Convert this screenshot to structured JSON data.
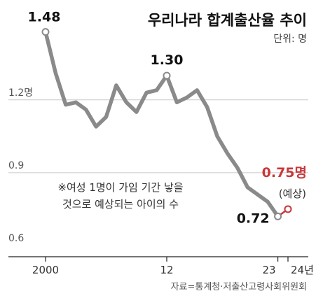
{
  "title": "우리나라 합계출산율 추이",
  "unit": "단위: 명",
  "source": "자료=통계청·저출산고령사회위원회",
  "note_lines": [
    "※여성 1명이 가임 기간 낳을",
    "것으로 예상되는 아이의 수"
  ],
  "colors": {
    "line": "#8a8a8a",
    "projection": "#c8383a",
    "text": "#111111"
  },
  "chart_data": {
    "type": "line",
    "title": "우리나라 합계출산율 추이",
    "ylabel": "",
    "ylim": [
      0.6,
      1.6
    ],
    "y_ticks": [
      {
        "value": 0.6,
        "label": "0.6"
      },
      {
        "value": 0.9,
        "label": "0.9"
      },
      {
        "value": 1.2,
        "label": "1.2명"
      }
    ],
    "x_ticks": [
      {
        "value": 2000,
        "label": "2000"
      },
      {
        "value": 2012,
        "label": "12"
      },
      {
        "value": 2023,
        "label": "23"
      },
      {
        "value": 2024,
        "label": "24년"
      }
    ],
    "grid": true,
    "series": [
      {
        "x": [
          2000,
          2001,
          2002,
          2003,
          2004,
          2005,
          2006,
          2007,
          2008,
          2009,
          2010,
          2011,
          2012,
          2013,
          2014,
          2015,
          2016,
          2017,
          2018,
          2019,
          2020,
          2021,
          2022,
          2023
        ],
        "values": [
          1.48,
          1.31,
          1.18,
          1.19,
          1.16,
          1.09,
          1.13,
          1.26,
          1.19,
          1.15,
          1.23,
          1.24,
          1.3,
          1.19,
          1.21,
          1.24,
          1.17,
          1.05,
          0.98,
          0.92,
          0.84,
          0.81,
          0.78,
          0.72
        ]
      },
      {
        "x": [
          2023,
          2024
        ],
        "values": [
          0.72,
          0.75
        ]
      }
    ],
    "data_labels": [
      {
        "x": 2000,
        "y": 1.48,
        "text": "1.48",
        "style": "vlabel"
      },
      {
        "x": 2012,
        "y": 1.3,
        "text": "1.30",
        "style": "vlabel"
      },
      {
        "x": 2023,
        "y": 0.72,
        "text": "0.72",
        "style": "vlabel"
      },
      {
        "x": 2024,
        "y": 0.75,
        "text": "0.75명",
        "style": "pred"
      },
      {
        "x": 2024,
        "y": 0.75,
        "text": "(예상)",
        "style": "predsub"
      }
    ]
  }
}
